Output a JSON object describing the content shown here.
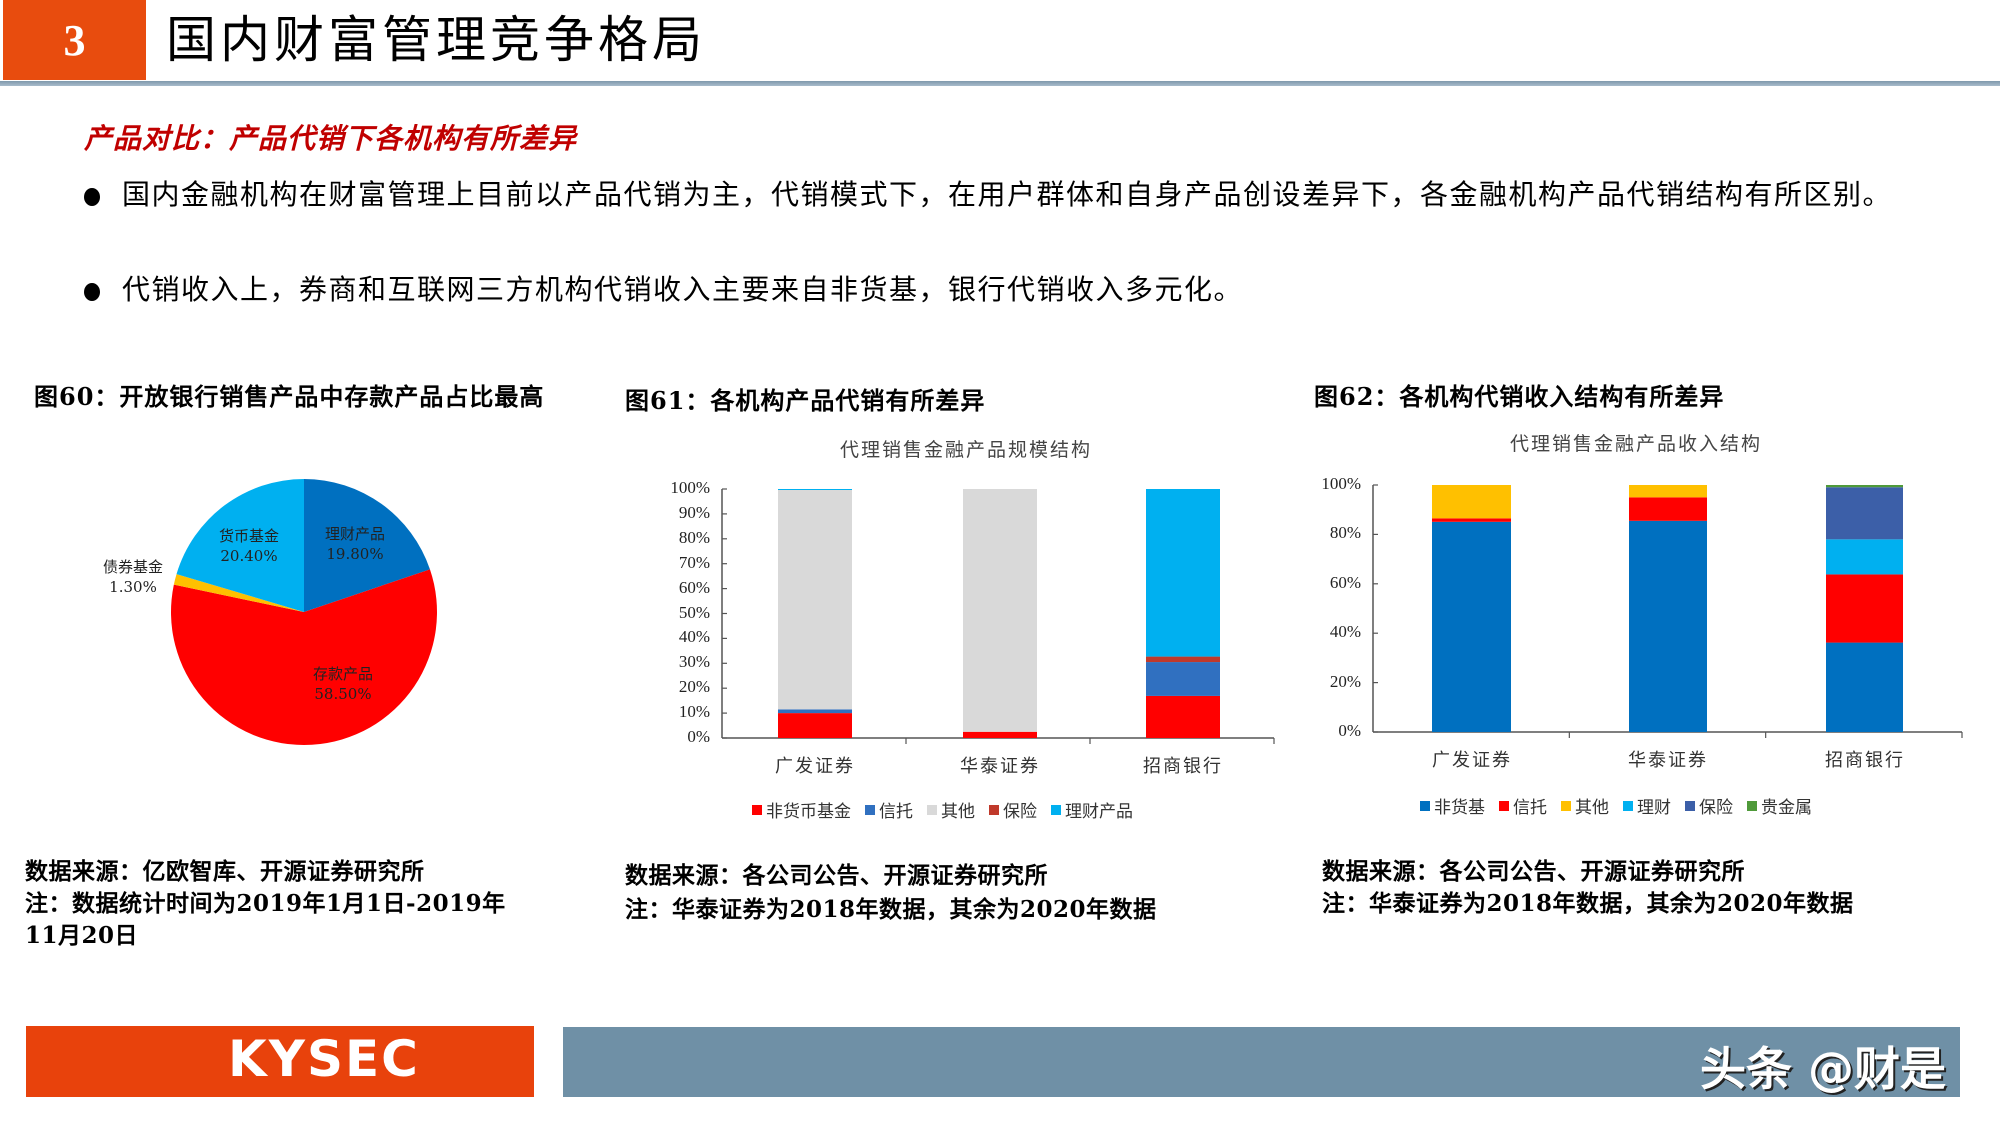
{
  "header": {
    "section_number": "3",
    "title": "国内财富管理竞争格局",
    "accent_color": "#e84c0e"
  },
  "subtitle": "产品对比：产品代销下各机构有所差异",
  "bullets": [
    "国内金融机构在财富管理上目前以产品代销为主，代销模式下，在用户群体和自身产品创设差异下，各金融机构产品代销结构有所区别。",
    "代销收入上，券商和互联网三方机构代销收入主要来自非货基，银行代销收入多元化。"
  ],
  "figures": {
    "fig60": {
      "title": "图60：开放银行销售产品中存款产品占比最高",
      "source": "数据来源：亿欧智库、开源证券研究所",
      "note_line1": "注：数据统计时间为2019年1月1日-2019年",
      "note_line2": "11月20日"
    },
    "fig61": {
      "title": "图61：各机构产品代销有所差异",
      "source": "数据来源：各公司公告、开源证券研究所",
      "note": "注：华泰证券为2018年数据，其余为2020年数据"
    },
    "fig62": {
      "title": "图62：各机构代销收入结构有所差异",
      "source": "数据来源：各公司公告、开源证券研究所",
      "note": "注：华泰证券为2018年数据，其余为2020年数据"
    }
  },
  "chart_data": [
    {
      "type": "pie",
      "title": "图60：开放银行销售产品中存款产品占比最高",
      "slices": [
        {
          "label": "理财产品",
          "value": 19.8,
          "display": "19.80%",
          "color": "#0070c0"
        },
        {
          "label": "存款产品",
          "value": 58.5,
          "display": "58.50%",
          "color": "#ff0000"
        },
        {
          "label": "债券基金",
          "value": 1.3,
          "display": "1.30%",
          "color": "#ffc000"
        },
        {
          "label": "货币基金",
          "value": 20.4,
          "display": "20.40%",
          "color": "#00b0f0"
        }
      ]
    },
    {
      "type": "bar",
      "stacked": true,
      "title": "代理销售金融产品规模结构",
      "categories": [
        "广发证券",
        "华泰证券",
        "招商银行"
      ],
      "yticks": [
        "0%",
        "10%",
        "20%",
        "30%",
        "40%",
        "50%",
        "60%",
        "70%",
        "80%",
        "90%",
        "100%"
      ],
      "ylim": [
        0,
        100
      ],
      "series": [
        {
          "name": "非货币基金",
          "color": "#ff0000",
          "values": [
            10.0,
            2.5,
            16.9
          ]
        },
        {
          "name": "信托",
          "color": "#3070c0",
          "values": [
            1.5,
            0,
            13.6
          ]
        },
        {
          "name": "其他",
          "color": "#d9d9d9",
          "values": [
            88.1,
            97.5,
            0
          ]
        },
        {
          "name": "保险",
          "color": "#c0392b",
          "values": [
            0,
            0,
            2.2
          ]
        },
        {
          "name": "理财产品",
          "color": "#00b0f0",
          "values": [
            0.4,
            0,
            67.3
          ]
        }
      ],
      "legend_position": "bottom"
    },
    {
      "type": "bar",
      "stacked": true,
      "title": "代理销售金融产品收入结构",
      "categories": [
        "广发证券",
        "华泰证券",
        "招商银行"
      ],
      "yticks": [
        "0%",
        "20%",
        "40%",
        "60%",
        "80%",
        "100%"
      ],
      "ylim": [
        0,
        100
      ],
      "series": [
        {
          "name": "非货基",
          "color": "#0070c0",
          "values": [
            85.1,
            85.5,
            36.2
          ]
        },
        {
          "name": "信托",
          "color": "#ff0000",
          "values": [
            1.4,
            9.5,
            27.6
          ]
        },
        {
          "name": "其他",
          "color": "#ffc000",
          "values": [
            13.5,
            5.0,
            0
          ]
        },
        {
          "name": "理财",
          "color": "#00b0f0",
          "values": [
            0,
            0,
            14.2
          ]
        },
        {
          "name": "保险",
          "color": "#3c5fa8",
          "values": [
            0,
            0,
            21.1
          ]
        },
        {
          "name": "贵金属",
          "color": "#4f9a3a",
          "values": [
            0,
            0,
            0.9
          ]
        }
      ],
      "legend_position": "bottom"
    }
  ],
  "footer": {
    "logo": "KYSEC",
    "watermark": "头条 @财是"
  }
}
